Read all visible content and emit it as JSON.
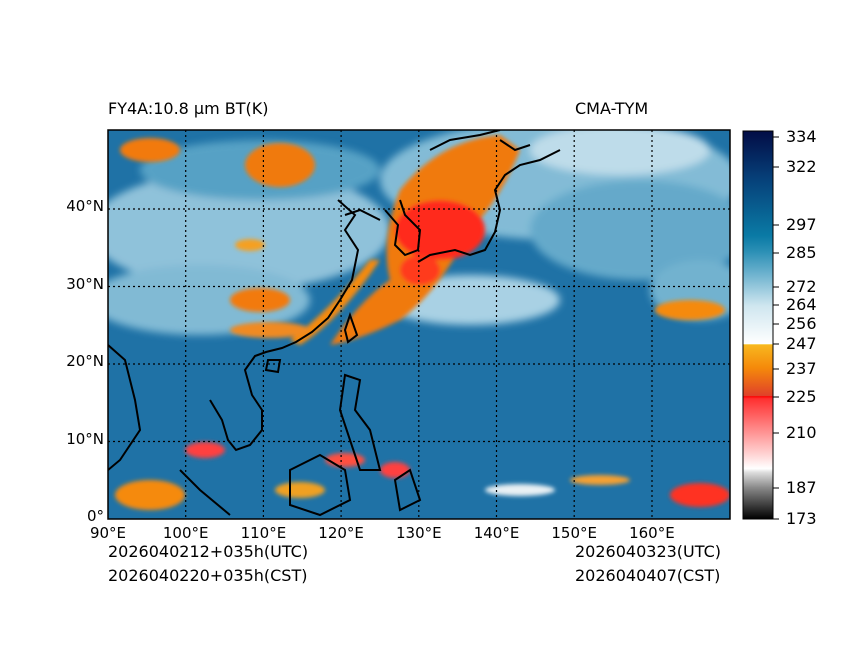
{
  "title_left": "FY4A:10.8 µm BT(K)",
  "title_right": "CMA-TYM",
  "lat_labels": [
    "0°",
    "10°N",
    "20°N",
    "30°N",
    "40°N"
  ],
  "lon_labels": [
    "90°E",
    "100°E",
    "110°E",
    "120°E",
    "130°E",
    "140°E",
    "150°E",
    "160°E"
  ],
  "footer": {
    "init_utc": "2026040212+035h(UTC)",
    "init_cst": "2026040220+035h(CST)",
    "valid_utc": "2026040323(UTC)",
    "valid_cst": "2026040407(CST)"
  },
  "colorbar": {
    "label_unit": "K",
    "ticks": [
      "334",
      "322",
      "297",
      "285",
      "272",
      "264",
      "256",
      "247",
      "237",
      "225",
      "210",
      "187",
      "173"
    ],
    "range": [
      173,
      334
    ]
  },
  "map_extent": {
    "lon": [
      90,
      170
    ],
    "lat": [
      0,
      50
    ]
  },
  "colors": {
    "ocean": "#1f72a6",
    "cloud_cold": "#f07a10",
    "cloud_very_cold": "#ff1a1a",
    "cloud_mid": "#a9d2e3"
  }
}
